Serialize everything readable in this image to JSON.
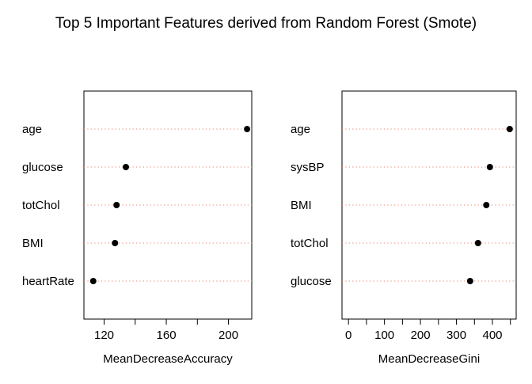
{
  "title": "Top 5 Important Features derived from Random Forest (Smote)",
  "colors": {
    "background": "#ffffff",
    "dotted_line": "#e8836e",
    "point": "#000000",
    "frame": "#000000"
  },
  "chart_data": [
    {
      "type": "scatter",
      "style": "dotchart",
      "categories": [
        "age",
        "glucose",
        "totChol",
        "BMI",
        "heartRate"
      ],
      "values": [
        212,
        134,
        128,
        127,
        113
      ],
      "xlabel": "MeanDecreaseAccuracy",
      "xlim": [
        107,
        215
      ],
      "xticks": [
        120,
        160,
        200
      ],
      "minor_ticks": [
        140,
        180
      ],
      "grid": false
    },
    {
      "type": "scatter",
      "style": "dotchart",
      "categories": [
        "age",
        "sysBP",
        "BMI",
        "totChol",
        "glucose"
      ],
      "values": [
        448,
        393,
        383,
        360,
        338
      ],
      "xlabel": "MeanDecreaseGini",
      "xlim": [
        -18,
        466
      ],
      "xticks": [
        0,
        100,
        200,
        300,
        400
      ],
      "minor_ticks": [
        50,
        150,
        250,
        350,
        450
      ],
      "grid": false
    }
  ]
}
